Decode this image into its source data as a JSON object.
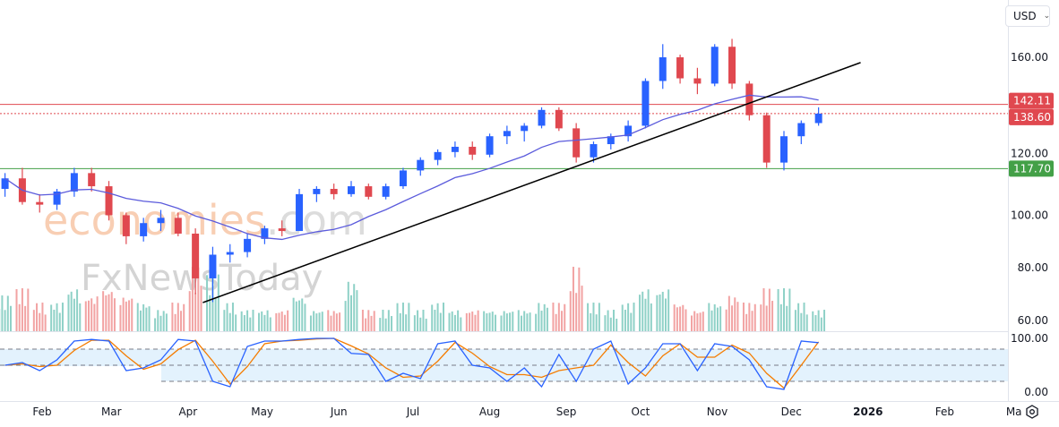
{
  "currency_selector": {
    "label": "USD",
    "icon": "chevron-down-icon"
  },
  "settings_icon": "gear-icon",
  "watermark": {
    "brand1_main": "economies",
    "brand1_suffix": ".com",
    "brand2": "FxNewsToday"
  },
  "colors": {
    "up": "#2962ff",
    "down": "#e0484f",
    "volume_up": "#8fd1c7",
    "volume_down": "#f2a3a3",
    "ma": "#5b5bdc",
    "stoch_k": "#2962ff",
    "stoch_d": "#f57c00",
    "resistance": "#e0484f",
    "support": "#43a047",
    "trendline": "#000000",
    "stoch_band": "#e3f2fd"
  },
  "chart_data": {
    "type": "candlestick",
    "title": "",
    "price_axis": {
      "ticks": [
        "160.00",
        "100.00",
        "80.00",
        "60.00"
      ],
      "hidden_tick": "120.00",
      "range": [
        60,
        165
      ]
    },
    "time_axis": {
      "ticks": [
        {
          "label": "Feb",
          "date": "2025-02-01"
        },
        {
          "label": "Mar",
          "date": "2025-03-01"
        },
        {
          "label": "Apr",
          "date": "2025-04-01"
        },
        {
          "label": "May",
          "date": "2025-05-01"
        },
        {
          "label": "Jun",
          "date": "2025-06-01"
        },
        {
          "label": "Jul",
          "date": "2025-07-01"
        },
        {
          "label": "Aug",
          "date": "2025-08-01"
        },
        {
          "label": "Sep",
          "date": "2025-09-01"
        },
        {
          "label": "Oct",
          "date": "2025-10-01"
        },
        {
          "label": "Nov",
          "date": "2025-11-01"
        },
        {
          "label": "Dec",
          "date": "2025-12-01"
        },
        {
          "label": "2026",
          "date": "2026-01-01",
          "bold": true
        },
        {
          "label": "Feb",
          "date": "2026-02-01"
        },
        {
          "label": "Ma",
          "date": "2026-03-01"
        }
      ]
    },
    "horizontal_lines": [
      {
        "price": 142.11,
        "label": "142.11",
        "style": "solid",
        "color": "#e0484f"
      },
      {
        "price": 138.6,
        "label": "138.60",
        "style": "dotted",
        "color": "#e0484f"
      },
      {
        "price": 117.7,
        "label": "117.70",
        "style": "solid",
        "color": "#43a047"
      }
    ],
    "trendline": {
      "start": {
        "date": "2025-04-07",
        "price": 66.8
      },
      "end": {
        "date": "2025-12-29",
        "price": 158
      }
    },
    "moving_average_period": 10,
    "candles": [
      [
        "2025-01-17",
        110,
        116,
        107,
        114,
        5
      ],
      [
        "2025-01-24",
        114,
        118,
        104,
        105,
        6
      ],
      [
        "2025-01-31",
        105,
        108,
        101,
        104,
        4
      ],
      [
        "2025-02-07",
        104,
        110,
        102,
        109,
        4
      ],
      [
        "2025-02-14",
        109,
        118,
        107,
        116,
        6
      ],
      [
        "2025-02-21",
        116,
        118,
        109,
        111,
        5
      ],
      [
        "2025-02-28",
        111,
        113,
        98,
        100,
        6
      ],
      [
        "2025-03-07",
        100,
        101,
        89,
        92,
        5
      ],
      [
        "2025-03-14",
        92,
        99,
        90,
        97,
        4
      ],
      [
        "2025-03-21",
        97,
        102,
        94,
        99,
        3
      ],
      [
        "2025-03-28",
        99,
        101,
        92,
        93,
        4
      ],
      [
        "2025-04-04",
        93,
        95,
        70,
        76,
        9
      ],
      [
        "2025-04-11",
        76,
        88,
        67,
        85,
        8
      ],
      [
        "2025-04-18",
        85,
        89,
        82,
        86,
        4
      ],
      [
        "2025-04-25",
        86,
        93,
        84,
        91,
        3
      ],
      [
        "2025-05-02",
        91,
        96,
        89,
        95,
        3
      ],
      [
        "2025-05-09",
        95,
        98,
        92,
        94,
        3
      ],
      [
        "2025-05-16",
        94,
        110,
        94,
        108,
        5
      ],
      [
        "2025-05-23",
        108,
        111,
        105,
        110,
        3
      ],
      [
        "2025-05-30",
        110,
        112,
        106,
        108,
        3
      ],
      [
        "2025-06-06",
        108,
        113,
        107,
        111,
        7
      ],
      [
        "2025-06-13",
        111,
        112,
        106,
        107,
        3
      ],
      [
        "2025-06-20",
        107,
        112,
        106,
        111,
        3
      ],
      [
        "2025-06-27",
        111,
        118,
        110,
        117,
        4
      ],
      [
        "2025-07-04",
        117,
        122,
        115,
        121,
        3
      ],
      [
        "2025-07-11",
        121,
        125,
        119,
        124,
        4
      ],
      [
        "2025-07-18",
        124,
        128,
        122,
        126,
        3
      ],
      [
        "2025-07-25",
        126,
        128,
        121,
        123,
        3
      ],
      [
        "2025-08-01",
        123,
        131,
        122,
        130,
        3
      ],
      [
        "2025-08-08",
        130,
        134,
        127,
        132,
        3
      ],
      [
        "2025-08-15",
        132,
        135,
        128,
        134,
        3
      ],
      [
        "2025-08-22",
        134,
        141,
        133,
        140,
        4
      ],
      [
        "2025-08-29",
        140,
        141,
        132,
        133,
        4
      ],
      [
        "2025-09-05",
        133,
        135,
        120,
        122,
        9
      ],
      [
        "2025-09-12",
        122,
        128,
        120,
        127,
        4
      ],
      [
        "2025-09-19",
        127,
        131,
        125,
        130,
        3
      ],
      [
        "2025-09-26",
        130,
        136,
        128,
        134,
        4
      ],
      [
        "2025-10-03",
        134,
        152,
        133,
        151,
        6
      ],
      [
        "2025-10-10",
        151,
        165,
        148,
        160,
        6
      ],
      [
        "2025-10-17",
        160,
        161,
        150,
        152,
        4
      ],
      [
        "2025-10-24",
        152,
        156,
        146,
        150,
        3
      ],
      [
        "2025-10-31",
        150,
        165,
        149,
        164,
        4
      ],
      [
        "2025-11-07",
        164,
        167,
        148,
        150,
        5
      ],
      [
        "2025-11-14",
        150,
        151,
        136,
        138,
        4
      ],
      [
        "2025-11-21",
        138,
        139,
        118,
        120,
        6
      ],
      [
        "2025-11-28",
        120,
        132,
        117,
        130,
        6
      ],
      [
        "2025-12-05",
        130,
        136,
        127,
        135,
        4
      ],
      [
        "2025-12-12",
        135,
        141,
        134,
        138.6,
        3
      ]
    ],
    "stochastic": {
      "axis_ticks": [
        "100.00",
        "0.00"
      ],
      "bands": [
        80,
        50,
        20
      ],
      "k": [
        50,
        55,
        40,
        60,
        95,
        98,
        95,
        40,
        45,
        60,
        98,
        95,
        20,
        10,
        85,
        95,
        95,
        98,
        100,
        100,
        72,
        70,
        20,
        35,
        25,
        90,
        95,
        50,
        45,
        20,
        45,
        10,
        70,
        20,
        80,
        95,
        15,
        45,
        90,
        90,
        40,
        90,
        85,
        60,
        10,
        5,
        95,
        92
      ]
    }
  }
}
